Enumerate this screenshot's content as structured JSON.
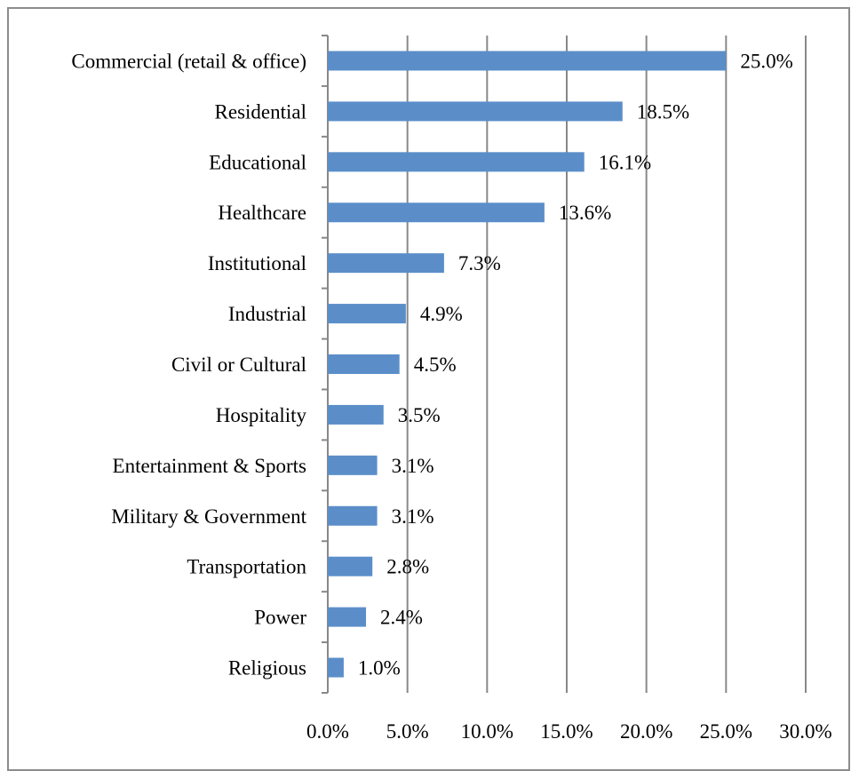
{
  "chart_data": {
    "type": "bar",
    "orientation": "horizontal",
    "title": "",
    "xlabel": "",
    "ylabel": "",
    "categories": [
      "Commercial (retail & office)",
      "Residential",
      "Educational",
      "Healthcare",
      "Institutional",
      "Industrial",
      "Civil or Cultural",
      "Hospitality",
      "Entertainment & Sports",
      "Military & Government",
      "Transportation",
      "Power",
      "Religious"
    ],
    "values": [
      25.0,
      18.5,
      16.1,
      13.6,
      7.3,
      4.9,
      4.5,
      3.5,
      3.1,
      3.1,
      2.8,
      2.4,
      1.0
    ],
    "value_labels": [
      "25.0%",
      "18.5%",
      "16.1%",
      "13.6%",
      "7.3%",
      "4.9%",
      "4.5%",
      "3.5%",
      "3.1%",
      "3.1%",
      "2.8%",
      "2.4%",
      "1.0%"
    ],
    "xlim": [
      0,
      30
    ],
    "x_ticks": [
      0,
      5,
      10,
      15,
      20,
      25,
      30
    ],
    "x_tick_labels": [
      "0.0%",
      "5.0%",
      "10.0%",
      "15.0%",
      "20.0%",
      "25.0%",
      "30.0%"
    ],
    "grid": true,
    "legend": "none",
    "colors": {
      "bar": "#5b8ec9",
      "grid": "#888888"
    }
  }
}
